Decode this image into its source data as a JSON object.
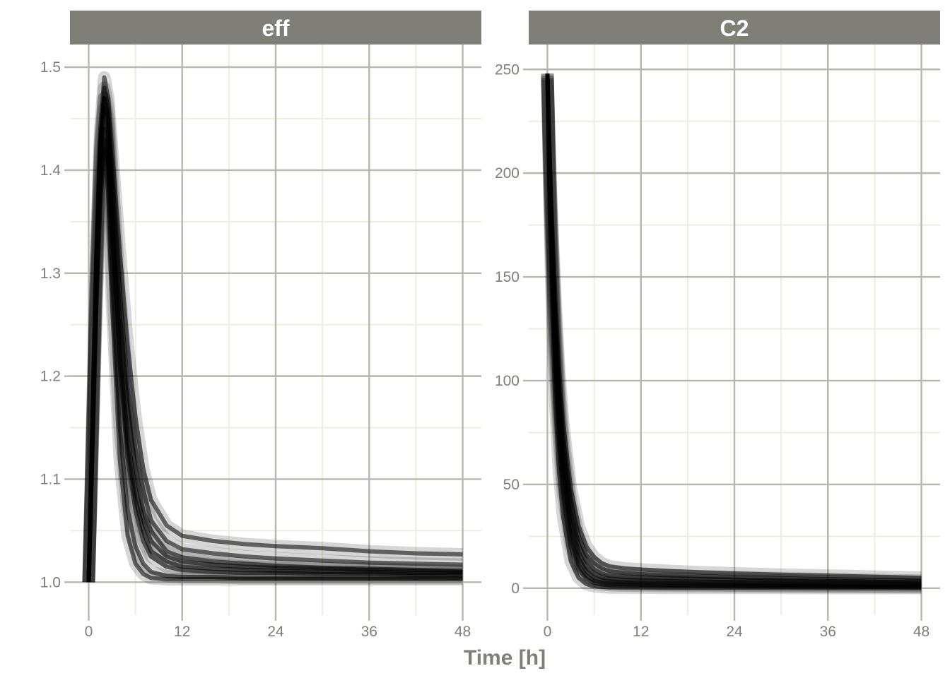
{
  "chart_data": {
    "type": "line",
    "xlabel": "Time [h]",
    "x_ticks": [
      0,
      12,
      24,
      36,
      48
    ],
    "xlim": [
      -2.4,
      50.4
    ],
    "grid": true,
    "legend": "none",
    "colors": {
      "strip_bg": "#7f7f78",
      "strip_text": "#ffffff",
      "grid_major": "#b7b8ad",
      "grid_minor": "#ecefdc",
      "line": "#000000",
      "tick_text": "#7f7f78"
    },
    "panels": [
      {
        "title": "eff",
        "ylim": [
          0.968,
          1.522
        ],
        "y_ticks": [
          1.0,
          1.1,
          1.2,
          1.3,
          1.4,
          1.5
        ],
        "y_tick_labels": [
          "1.0",
          "1.1",
          "1.2",
          "1.3",
          "1.4",
          "1.5"
        ],
        "series": [
          {
            "x": [
              0,
              0.25,
              0.5,
              1,
              1.5,
              2,
              2.5,
              3,
              4,
              5,
              6,
              7,
              8,
              10,
              12,
              16,
              20,
              24,
              30,
              36,
              42,
              48
            ],
            "y": [
              1.0,
              1.08,
              1.17,
              1.33,
              1.44,
              1.49,
              1.47,
              1.42,
              1.32,
              1.23,
              1.16,
              1.11,
              1.08,
              1.055,
              1.045,
              1.04,
              1.037,
              1.035,
              1.033,
              1.03,
              1.028,
              1.027
            ]
          },
          {
            "x": [
              0,
              0.25,
              0.5,
              1,
              1.5,
              2,
              2.5,
              3,
              4,
              5,
              6,
              7,
              8,
              10,
              12,
              16,
              20,
              24,
              30,
              36,
              42,
              48
            ],
            "y": [
              1.0,
              1.08,
              1.16,
              1.31,
              1.42,
              1.47,
              1.45,
              1.38,
              1.26,
              1.17,
              1.11,
              1.07,
              1.05,
              1.03,
              1.024,
              1.02,
              1.018,
              1.016,
              1.014,
              1.013,
              1.012,
              1.011
            ]
          },
          {
            "x": [
              0,
              0.25,
              0.5,
              1,
              1.5,
              2,
              2.5,
              3,
              4,
              5,
              6,
              7,
              8,
              10,
              12,
              16,
              20,
              24,
              30,
              36,
              42,
              48
            ],
            "y": [
              1.0,
              1.07,
              1.15,
              1.3,
              1.41,
              1.46,
              1.43,
              1.35,
              1.21,
              1.12,
              1.07,
              1.04,
              1.025,
              1.015,
              1.012,
              1.01,
              1.009,
              1.009,
              1.008,
              1.008,
              1.007,
              1.007
            ]
          },
          {
            "x": [
              0,
              0.25,
              0.5,
              1,
              1.5,
              2,
              2.5,
              3,
              4,
              5,
              6,
              7,
              8,
              10,
              12,
              16,
              20,
              24,
              30,
              36,
              42,
              48
            ],
            "y": [
              1.0,
              1.07,
              1.14,
              1.29,
              1.39,
              1.44,
              1.4,
              1.3,
              1.15,
              1.07,
              1.035,
              1.018,
              1.01,
              1.006,
              1.005,
              1.005,
              1.004,
              1.004,
              1.004,
              1.004,
              1.004,
              1.004
            ]
          },
          {
            "x": [
              0,
              0.25,
              0.5,
              1,
              1.5,
              2,
              2.5,
              3,
              4,
              5,
              6,
              7,
              8,
              10,
              12,
              16,
              20,
              24,
              30,
              36,
              42,
              48
            ],
            "y": [
              1.0,
              1.06,
              1.13,
              1.27,
              1.37,
              1.42,
              1.38,
              1.27,
              1.12,
              1.045,
              1.018,
              1.008,
              1.004,
              1.003,
              1.003,
              1.003,
              1.003,
              1.003,
              1.003,
              1.003,
              1.003,
              1.003
            ]
          },
          {
            "x": [
              0,
              0.25,
              0.5,
              1,
              1.5,
              2,
              2.5,
              3,
              4,
              5,
              6,
              7,
              8,
              10,
              12,
              16,
              20,
              24,
              30,
              36,
              42,
              48
            ],
            "y": [
              1.0,
              1.07,
              1.15,
              1.3,
              1.42,
              1.48,
              1.46,
              1.4,
              1.28,
              1.19,
              1.13,
              1.09,
              1.06,
              1.04,
              1.032,
              1.028,
              1.025,
              1.023,
              1.021,
              1.019,
              1.018,
              1.017
            ]
          },
          {
            "x": [
              0,
              0.25,
              0.5,
              1,
              1.5,
              2,
              2.5,
              3,
              4,
              5,
              6,
              7,
              8,
              10,
              12,
              16,
              20,
              24,
              30,
              36,
              42,
              48
            ],
            "y": [
              1.0,
              1.07,
              1.14,
              1.28,
              1.38,
              1.43,
              1.41,
              1.34,
              1.22,
              1.13,
              1.08,
              1.05,
              1.03,
              1.02,
              1.015,
              1.013,
              1.012,
              1.011,
              1.01,
              1.01,
              1.009,
              1.009
            ]
          },
          {
            "x": [
              0,
              0.25,
              0.5,
              1,
              1.5,
              2,
              2.5,
              3,
              4,
              5,
              6,
              7,
              8,
              10,
              12,
              16,
              20,
              24,
              30,
              36,
              42,
              48
            ],
            "y": [
              1.0,
              1.08,
              1.16,
              1.32,
              1.43,
              1.47,
              1.44,
              1.36,
              1.23,
              1.14,
              1.09,
              1.06,
              1.04,
              1.025,
              1.02,
              1.017,
              1.015,
              1.014,
              1.013,
              1.012,
              1.011,
              1.01
            ]
          }
        ]
      },
      {
        "title": "C2",
        "ylim": [
          -13,
          262
        ],
        "y_ticks": [
          0,
          50,
          100,
          150,
          200,
          250
        ],
        "y_tick_labels": [
          "0",
          "50",
          "100",
          "150",
          "200",
          "250"
        ],
        "series": [
          {
            "x": [
              0,
              0.25,
              0.5,
              1,
              1.5,
              2,
              3,
              4,
              5,
              6,
              7,
              8,
              10,
              12,
              16,
              20,
              24,
              30,
              36,
              42,
              48
            ],
            "y": [
              248,
              215,
              185,
              140,
              105,
              80,
              48,
              30,
              20,
              15,
              12,
              10.5,
              9.5,
              9,
              8.2,
              7.6,
              7.1,
              6.5,
              6.0,
              5.5,
              5.0
            ]
          },
          {
            "x": [
              0,
              0.25,
              0.5,
              1,
              1.5,
              2,
              3,
              4,
              5,
              6,
              7,
              8,
              10,
              12,
              16,
              20,
              24,
              30,
              36,
              42,
              48
            ],
            "y": [
              248,
              210,
              178,
              128,
              92,
              67,
              37,
              21,
              13,
              9,
              7,
              6,
              5.5,
              5.2,
              4.8,
              4.4,
              4.1,
              3.7,
              3.4,
              3.1,
              2.8
            ]
          },
          {
            "x": [
              0,
              0.25,
              0.5,
              1,
              1.5,
              2,
              3,
              4,
              5,
              6,
              7,
              8,
              10,
              12,
              16,
              20,
              24,
              30,
              36,
              42,
              48
            ],
            "y": [
              247,
              205,
              170,
              118,
              82,
              57,
              28,
              14,
              8,
              5,
              3.8,
              3.2,
              2.8,
              2.6,
              2.4,
              2.2,
              2.0,
              1.8,
              1.6,
              1.5,
              1.4
            ]
          },
          {
            "x": [
              0,
              0.25,
              0.5,
              1,
              1.5,
              2,
              3,
              4,
              5,
              6,
              7,
              8,
              10,
              12,
              16,
              20,
              24,
              30,
              36,
              42,
              48
            ],
            "y": [
              246,
              198,
              160,
              105,
              70,
              46,
              20,
              9,
              4.5,
              2.5,
              1.8,
              1.5,
              1.3,
              1.2,
              1.1,
              1.0,
              0.9,
              0.8,
              0.7,
              0.6,
              0.5
            ]
          },
          {
            "x": [
              0,
              0.25,
              0.5,
              1,
              1.5,
              2,
              3,
              4,
              5,
              6,
              7,
              8,
              10,
              12,
              16,
              20,
              24,
              30,
              36,
              42,
              48
            ],
            "y": [
              245,
              190,
              148,
              90,
              56,
              35,
              13,
              5,
              2,
              1,
              0.6,
              0.4,
              0.3,
              0.3,
              0.2,
              0.2,
              0.2,
              0.2,
              0.1,
              0.1,
              0.1
            ]
          },
          {
            "x": [
              0,
              0.25,
              0.5,
              1,
              1.5,
              2,
              3,
              4,
              5,
              6,
              7,
              8,
              10,
              12,
              16,
              20,
              24,
              30,
              36,
              42,
              48
            ],
            "y": [
              248,
              212,
              182,
              134,
              98,
              73,
              42,
              25,
              16,
              12,
              9.5,
              8.2,
              7.3,
              6.8,
              6.2,
              5.7,
              5.3,
              4.8,
              4.3,
              3.9,
              3.5
            ]
          },
          {
            "x": [
              0,
              0.25,
              0.5,
              1,
              1.5,
              2,
              3,
              4,
              5,
              6,
              7,
              8,
              10,
              12,
              16,
              20,
              24,
              30,
              36,
              42,
              48
            ],
            "y": [
              247,
              207,
              174,
              122,
              87,
              62,
              32,
              17,
              10,
              7,
              5.3,
              4.5,
              4.0,
              3.7,
              3.4,
              3.1,
              2.9,
              2.6,
              2.3,
              2.1,
              1.9
            ]
          },
          {
            "x": [
              0,
              0.25,
              0.5,
              1,
              1.5,
              2,
              3,
              4,
              5,
              6,
              7,
              8,
              10,
              12,
              16,
              20,
              24,
              30,
              36,
              42,
              48
            ],
            "y": [
              246,
              201,
              165,
              111,
              76,
              51,
              24,
              11,
              6,
              3.5,
              2.6,
              2.2,
              1.9,
              1.8,
              1.6,
              1.5,
              1.4,
              1.2,
              1.1,
              1.0,
              0.9
            ]
          }
        ]
      }
    ]
  }
}
